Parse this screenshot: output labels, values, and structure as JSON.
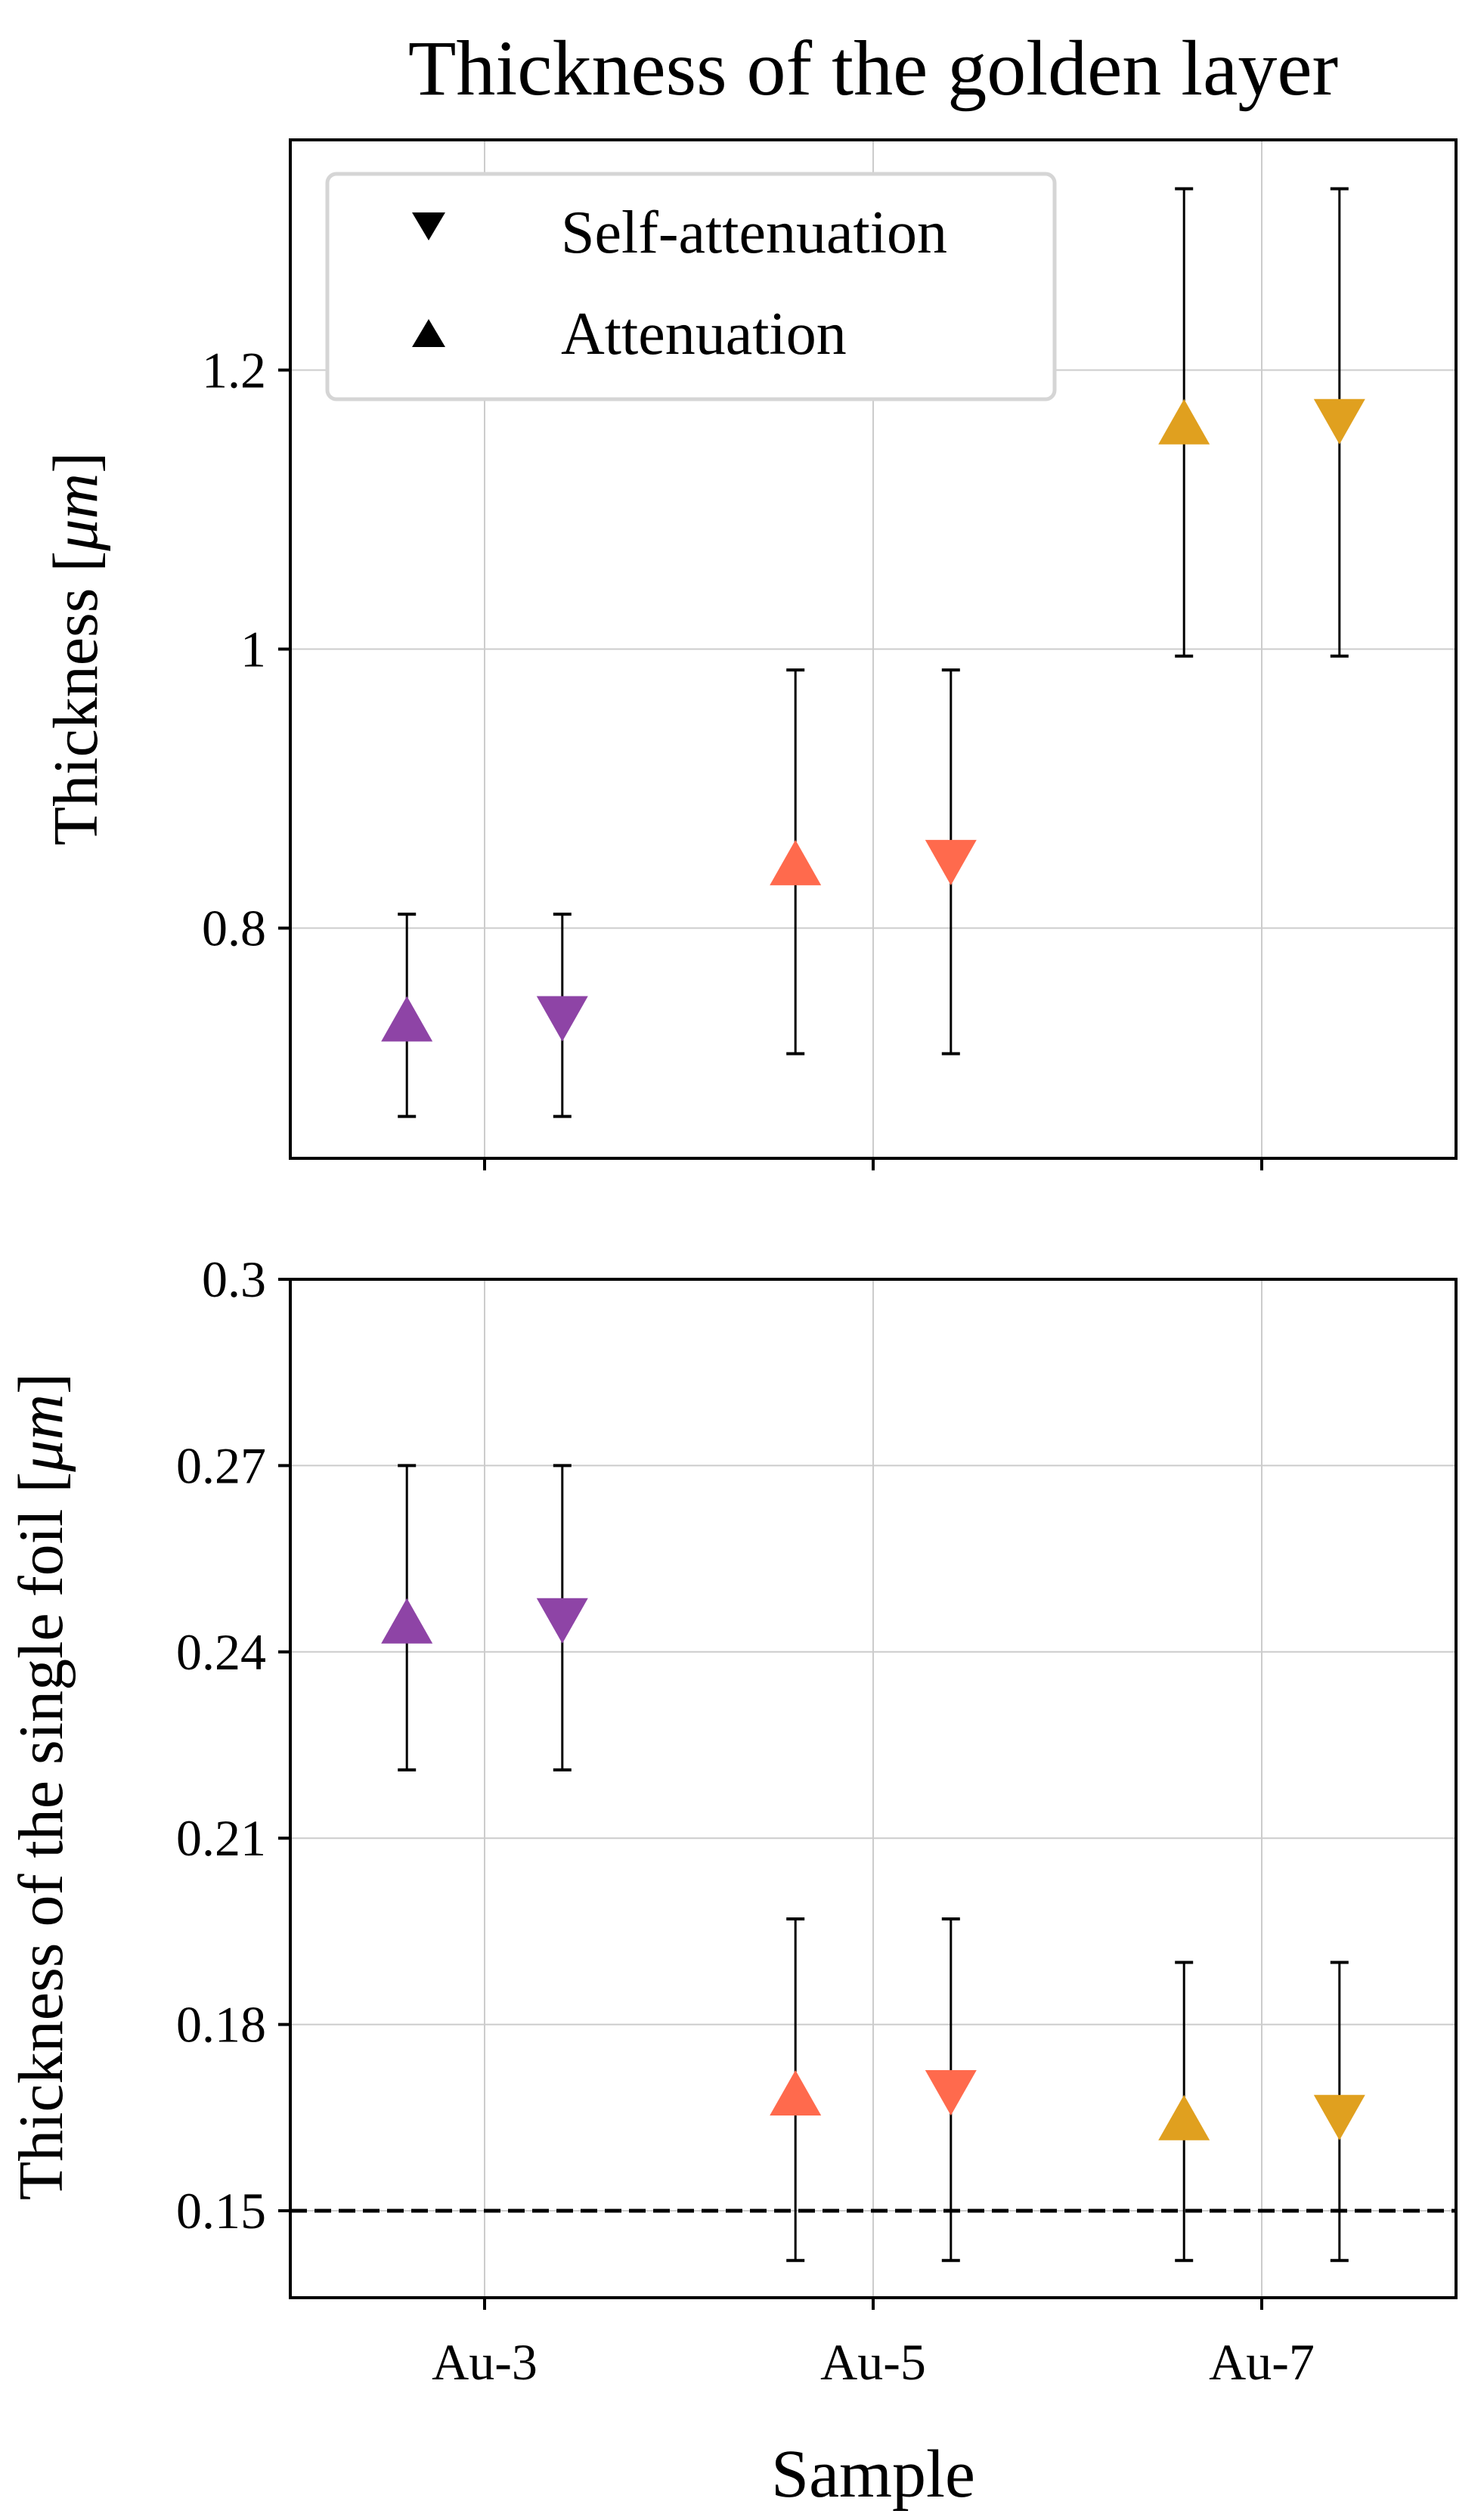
{
  "chart_data": [
    {
      "type": "scatter",
      "title": "Thickness of the golden layer",
      "ylabel_prefix": "Thickness [",
      "ylabel_unit": "μm",
      "ylabel_suffix": "]",
      "xlabel": "",
      "ylim": [
        0.635,
        1.365
      ],
      "yticks": [
        0.8,
        1.0,
        1.2
      ],
      "ytick_labels": [
        "0.8",
        "1",
        "1.2"
      ],
      "categories": [
        "Au-3",
        "Au-5",
        "Au-7"
      ],
      "show_xtick_labels": false,
      "grid": true,
      "legend": {
        "placement": "top-left",
        "entries": [
          {
            "label": "Self-attenuation",
            "marker": "triangle-down"
          },
          {
            "label": "Attenuation",
            "marker": "triangle-up"
          }
        ]
      },
      "series": [
        {
          "name": "Attenuation",
          "marker": "triangle-up",
          "offset": -0.2,
          "values": [
            0.735,
            0.847,
            1.163
          ],
          "lower": [
            0.665,
            0.71,
            0.995
          ],
          "upper": [
            0.81,
            0.985,
            1.33
          ]
        },
        {
          "name": "Self-attenuation",
          "marker": "triangle-down",
          "offset": 0.2,
          "values": [
            0.735,
            0.847,
            1.163
          ],
          "lower": [
            0.665,
            0.71,
            0.995
          ],
          "upper": [
            0.81,
            0.985,
            1.33
          ]
        }
      ]
    },
    {
      "type": "scatter",
      "title": "",
      "ylabel_prefix": "Thickness of the single foil [",
      "ylabel_unit": "μm",
      "ylabel_suffix": "]",
      "xlabel": "Sample",
      "ylim": [
        0.136,
        0.3
      ],
      "yticks": [
        0.15,
        0.18,
        0.21,
        0.24,
        0.27,
        0.3
      ],
      "ytick_labels": [
        "0.15",
        "0.18",
        "0.21",
        "0.24",
        "0.27",
        "0.3"
      ],
      "categories": [
        "Au-3",
        "Au-5",
        "Au-7"
      ],
      "show_xtick_labels": true,
      "grid": true,
      "reference_line": {
        "y": 0.15,
        "style": "dashed"
      },
      "series": [
        {
          "name": "Attenuation",
          "marker": "triangle-up",
          "offset": -0.2,
          "values": [
            0.245,
            0.169,
            0.165
          ],
          "lower": [
            0.221,
            0.142,
            0.142
          ],
          "upper": [
            0.27,
            0.197,
            0.19
          ]
        },
        {
          "name": "Self-attenuation",
          "marker": "triangle-down",
          "offset": 0.2,
          "values": [
            0.245,
            0.169,
            0.165
          ],
          "lower": [
            0.221,
            0.142,
            0.142
          ],
          "upper": [
            0.27,
            0.197,
            0.19
          ]
        }
      ]
    }
  ],
  "colors": {
    "Au-3": "#8e44a6",
    "Au-5": "#ff6a4d",
    "Au-7": "#e0a01f",
    "legend_marker": "#000000",
    "grid": "#cccccc",
    "error_bar": "#000000"
  }
}
